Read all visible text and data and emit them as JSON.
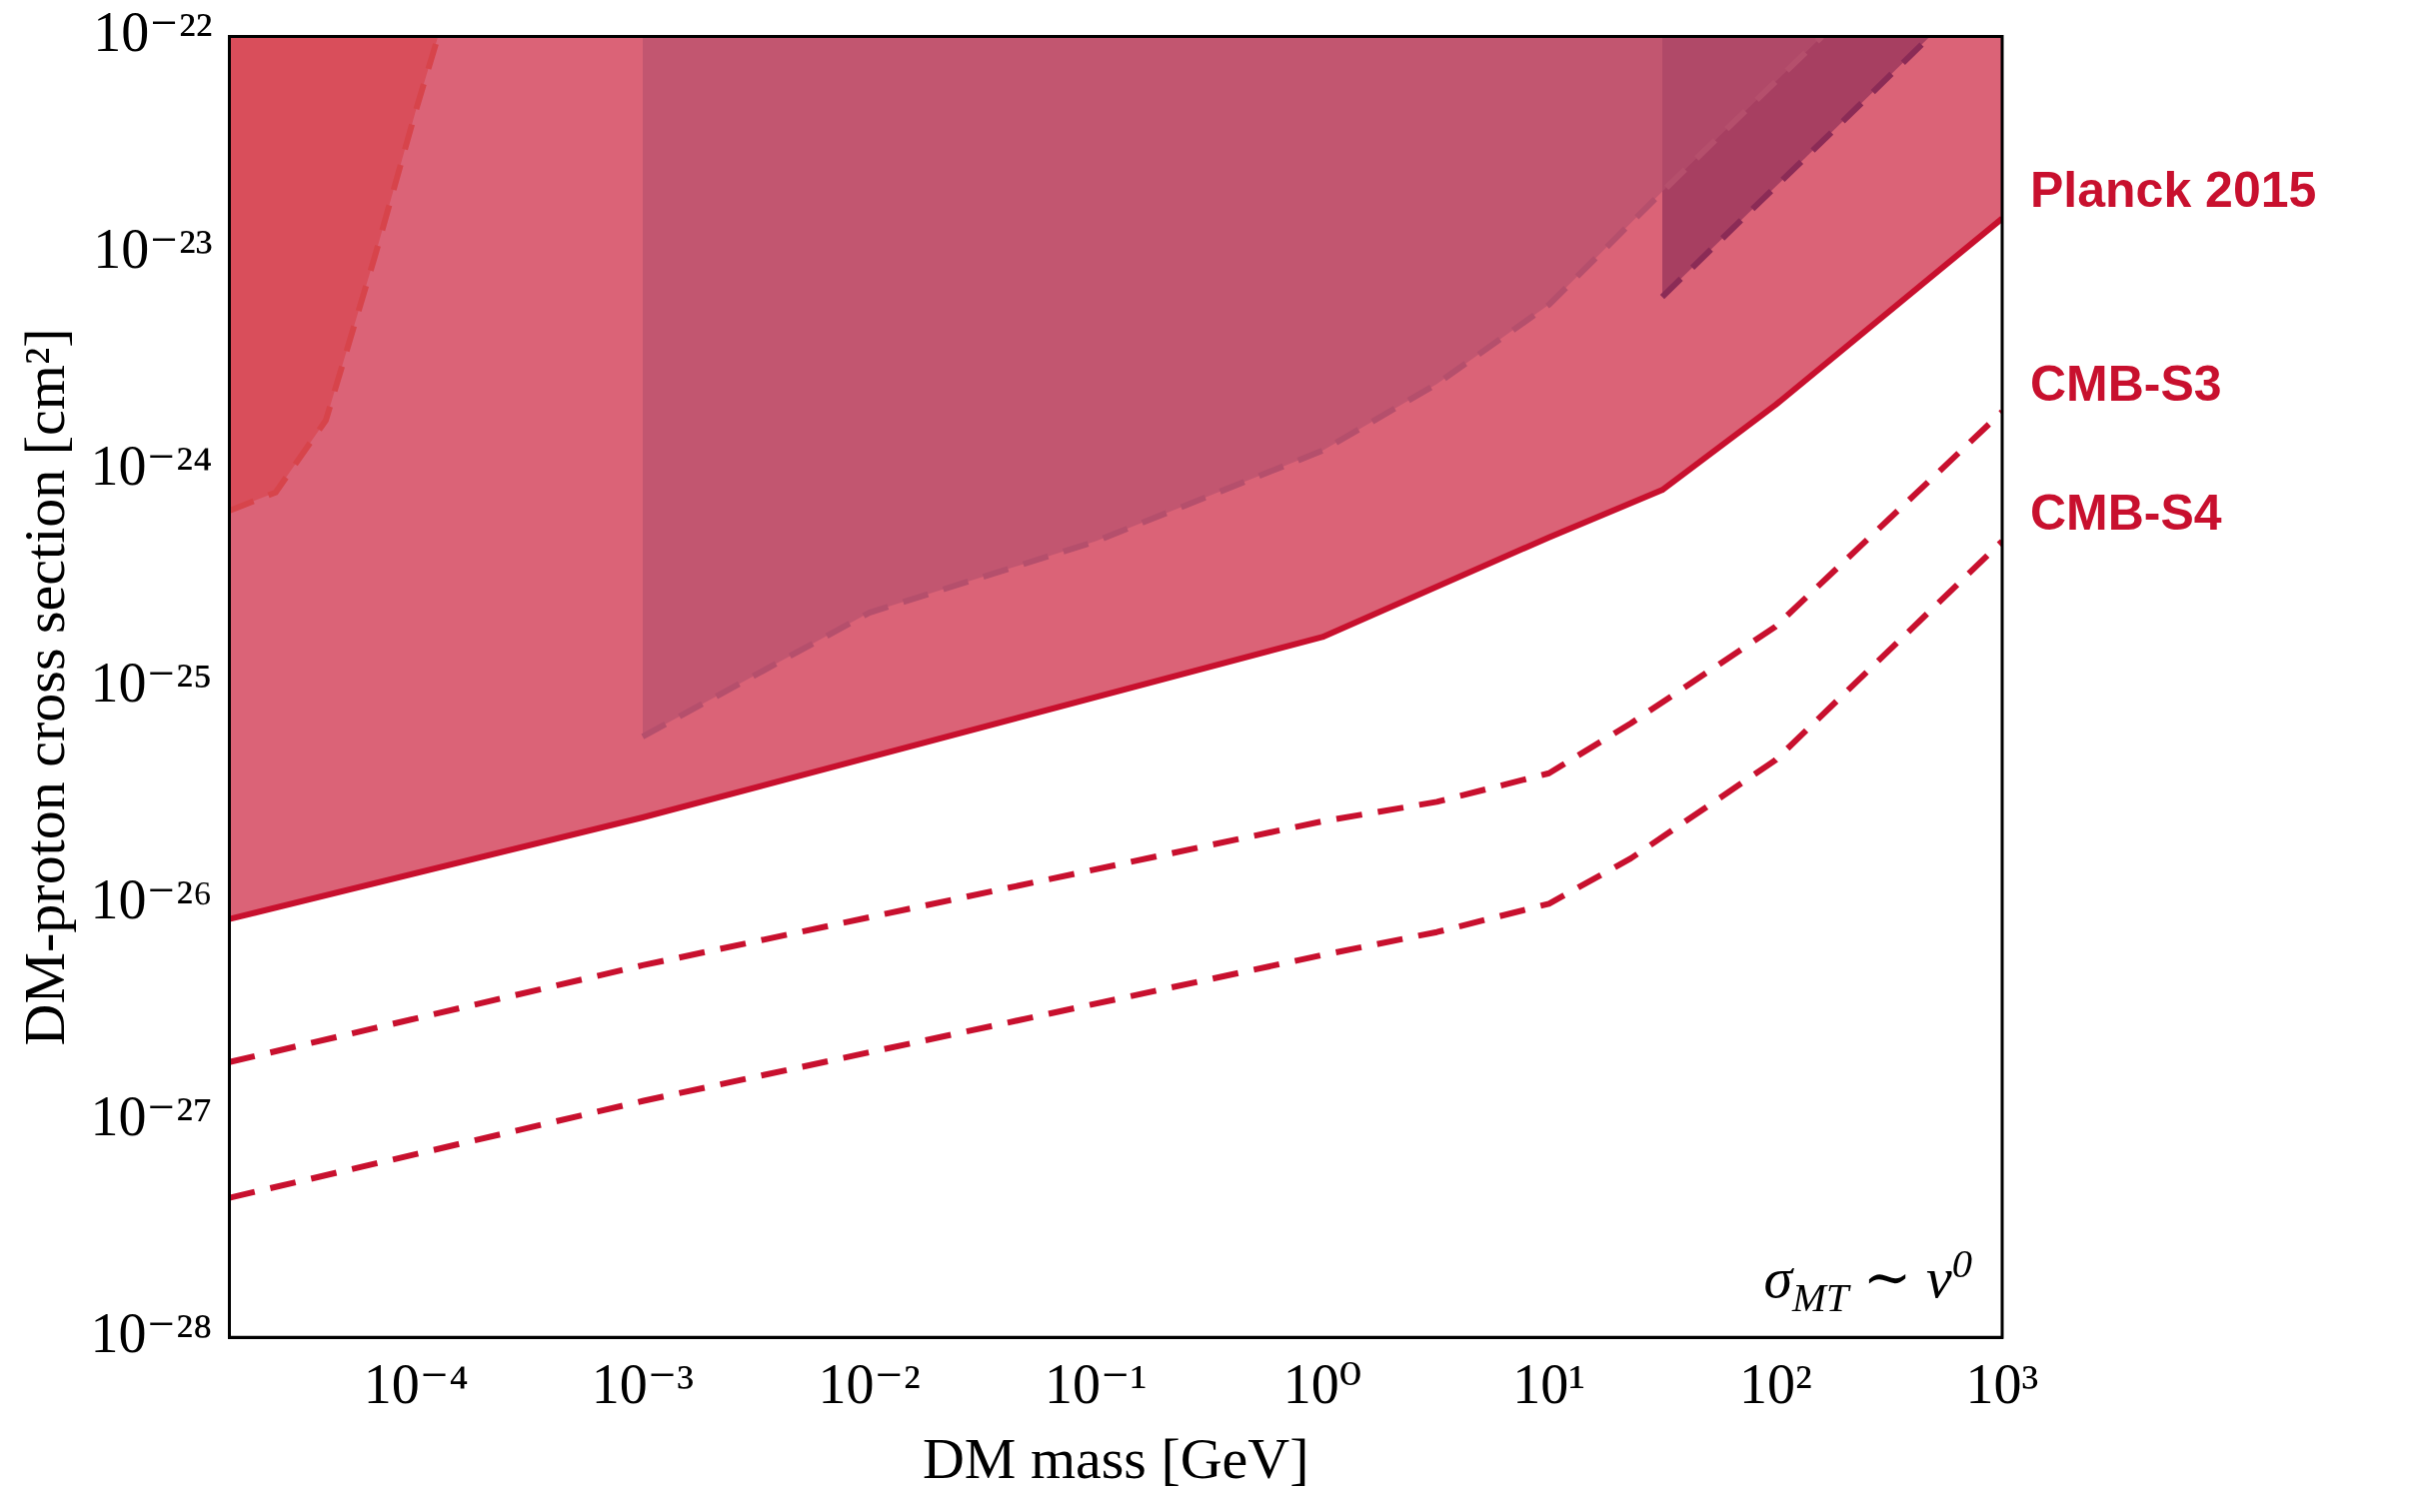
{
  "chart_data": {
    "type": "line",
    "xlabel": "DM mass [GeV]",
    "ylabel": "DM-proton cross section [cm²]",
    "log": "xy",
    "grid": false,
    "legend": false,
    "marker": "none",
    "xlim": [
      1.5e-05,
      1000
    ],
    "ylim": [
      1e-28,
      1e-22
    ],
    "xticks": [
      {
        "value": 0.0001,
        "label": "10⁻⁴"
      },
      {
        "value": 0.001,
        "label": "10⁻³"
      },
      {
        "value": 0.01,
        "label": "10⁻²"
      },
      {
        "value": 0.1,
        "label": "10⁻¹"
      },
      {
        "value": 1,
        "label": "10⁰"
      },
      {
        "value": 10,
        "label": "10¹"
      },
      {
        "value": 100,
        "label": "10²"
      },
      {
        "value": 1000,
        "label": "10³"
      }
    ],
    "yticks": [
      {
        "value": 1e-28,
        "label": "10⁻²⁸"
      },
      {
        "value": 1e-27,
        "label": "10⁻²⁷"
      },
      {
        "value": 1e-26,
        "label": "10⁻²⁶"
      },
      {
        "value": 1e-25,
        "label": "10⁻²⁵"
      },
      {
        "value": 1e-24,
        "label": "10⁻²⁴"
      },
      {
        "value": 1e-23,
        "label": "10⁻²³"
      },
      {
        "value": 1e-22,
        "label": "10⁻²²"
      }
    ],
    "annotations": [
      "σ$_{MT}$ ∼ v$^{0}$"
    ],
    "series": [
      {
        "name": "Planck 2015",
        "type": "area",
        "color": "#c8102e",
        "line_style": "solid",
        "x": [
          1.5e-05,
          1.5e-05,
          0.001,
          1,
          10,
          31.6,
          100,
          1000,
          1000
        ],
        "values": [
          1e-22,
          8.5e-27,
          2.5e-26,
          1.7e-25,
          4.9e-25,
          8.1e-25,
          2e-24,
          1.45e-23,
          1e-22
        ]
      },
      {
        "type": "area",
        "color": "#f4a582",
        "line_style": "dashed",
        "x": [
          1.5e-05,
          1.5e-05,
          2.4e-05,
          4e-05,
          6.6e-05,
          0.0001,
          0.000125
        ],
        "values": [
          1e-22,
          6.5e-25,
          7.9e-25,
          1.7e-24,
          9.8e-24,
          4.6e-23,
          1e-22
        ]
      },
      {
        "type": "area",
        "color": "#92c5de",
        "line_style": "dashed",
        "x": [
          0.001,
          0.001,
          0.01,
          0.1,
          1,
          3.2,
          10,
          32,
          160
        ],
        "values": [
          1e-22,
          5.9e-26,
          2.2e-25,
          4.7e-25,
          1.23e-24,
          2.5e-24,
          5.8e-24,
          1.95e-23,
          1e-22
        ]
      },
      {
        "type": "area",
        "color": "#1a5fa0",
        "line_style": "dashed",
        "x": [
          31.6,
          31.6,
          480
        ],
        "values": [
          1e-22,
          6.3e-24,
          1e-22
        ]
      },
      {
        "name": "CMB-S3",
        "type": "line",
        "color": "#c8102e",
        "line_style": "dashed",
        "x": [
          1.5e-05,
          0.001,
          1,
          3.2,
          10,
          23,
          100,
          1000
        ],
        "values": [
          1.86e-27,
          5.2e-27,
          2.4e-26,
          2.95e-26,
          4e-26,
          6.8e-26,
          1.9e-25,
          1.86e-24
        ]
      },
      {
        "name": "CMB-S4",
        "type": "line",
        "color": "#c8102e",
        "line_style": "dashed",
        "x": [
          1.5e-05,
          0.001,
          1,
          3.2,
          10,
          23,
          100,
          1000
        ],
        "values": [
          4.4e-28,
          1.23e-27,
          5.8e-27,
          7.4e-27,
          1e-26,
          1.62e-26,
          4.6e-26,
          4.7e-25
        ]
      }
    ]
  }
}
